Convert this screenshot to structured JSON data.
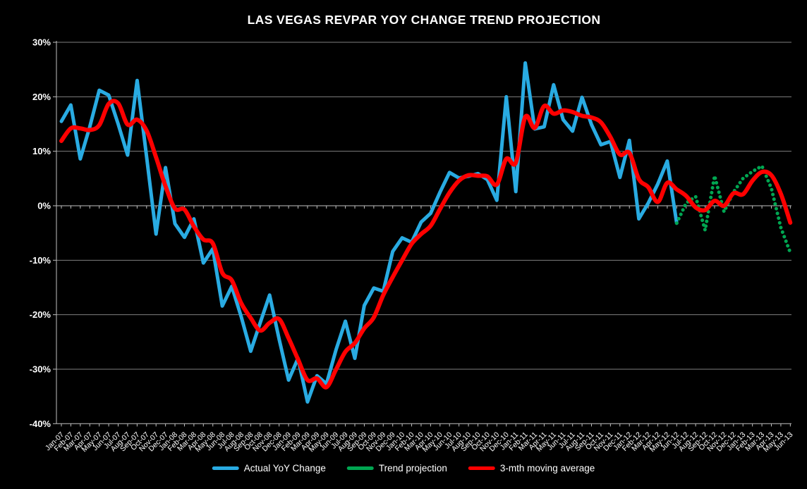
{
  "title": "LAS VEGAS REVPAR YOY CHANGE TREND PROJECTION",
  "axes": {
    "y_tick_labels": [
      "30%",
      "20%",
      "10%",
      "0%",
      "-10%",
      "-20%",
      "-30%",
      "-40%"
    ],
    "y_tick_values": [
      30,
      20,
      10,
      0,
      -10,
      -20,
      -30,
      -40
    ],
    "ylim": [
      -40,
      30
    ],
    "grid": true,
    "legend_position": "bottom"
  },
  "chart_data": {
    "type": "line",
    "title": "LAS VEGAS REVPAR YOY CHANGE TREND PROJECTION",
    "xlabel": "",
    "ylabel": "",
    "ylim": [
      -40,
      30
    ],
    "categories": [
      "Jan-07",
      "Feb-07",
      "Mar-07",
      "Apr-07",
      "May-07",
      "Jun-07",
      "Jul-07",
      "Aug-07",
      "Sep-07",
      "Oct-07",
      "Nov-07",
      "Dec-07",
      "Jan-08",
      "Feb-08",
      "Mar-08",
      "Apr-08",
      "May-08",
      "Jun-08",
      "Jul-08",
      "Aug-08",
      "Sep-08",
      "Oct-08",
      "Nov-08",
      "Dec-08",
      "Jan-09",
      "Feb-09",
      "Mar-09",
      "Apr-09",
      "May-09",
      "Jun-09",
      "Jul-09",
      "Aug-09",
      "Sep-09",
      "Oct-09",
      "Nov-09",
      "Dec-09",
      "Jan-10",
      "Feb-10",
      "Mar-10",
      "Apr-10",
      "May-10",
      "Jun-10",
      "Jul-10",
      "Aug-10",
      "Sep-10",
      "Oct-10",
      "Nov-10",
      "Dec-10",
      "Jan-11",
      "Feb-11",
      "Mar-11",
      "Apr-11",
      "May-11",
      "Jun-11",
      "Jul-11",
      "Aug-11",
      "Sep-11",
      "Oct-11",
      "Nov-11",
      "Dec-11",
      "Jan-12",
      "Feb-12",
      "Mar-12",
      "Apr-12",
      "May-12",
      "Jun-12",
      "Jul-12",
      "Aug-12",
      "Sep-12",
      "Oct-12",
      "Nov-12",
      "Dec-12",
      "Jan-13",
      "Feb-13",
      "Mar-13",
      "Apr-13",
      "May-13",
      "Jun-13"
    ],
    "series": [
      {
        "name": "Actual YoY Change",
        "color": "#29ABE2",
        "style": "solid",
        "start_index": 0,
        "values": [
          15.5,
          18.5,
          8.6,
          14.5,
          21.2,
          20.3,
          15.0,
          9.3,
          23.0,
          9.0,
          -5.2,
          7.0,
          -3.3,
          -5.8,
          -2.4,
          -10.5,
          -7.9,
          -18.4,
          -14.8,
          -20.4,
          -26.7,
          -21.5,
          -16.4,
          -24.5,
          -32.0,
          -28.0,
          -36.0,
          -31.2,
          -32.7,
          -26.5,
          -21.2,
          -28.0,
          -18.3,
          -15.1,
          -15.7,
          -8.4,
          -5.9,
          -6.7,
          -3.0,
          -1.4,
          2.5,
          6.1,
          5.1,
          5.4,
          5.9,
          4.8,
          1.0,
          20.0,
          2.6,
          26.2,
          14.1,
          14.5,
          22.2,
          15.8,
          13.7,
          19.9,
          14.9,
          11.2,
          11.8,
          5.2,
          12.0,
          -2.4,
          0.5,
          4.0,
          8.2,
          -3.2
        ]
      },
      {
        "name": "Trend projection",
        "color": "#00A651",
        "style": "dotted",
        "start_index": 65,
        "values": [
          -3.2,
          0.5,
          1.7,
          -4.5,
          5.5,
          -1.1,
          2.5,
          5.0,
          6.3,
          7.3,
          3.2,
          -4.0,
          -8.6
        ]
      },
      {
        "name": "3-mth moving average",
        "color": "#FF0000",
        "style": "smooth",
        "start_index": 0,
        "values": [
          11.9,
          14.2,
          14.2,
          13.9,
          14.8,
          18.7,
          18.8,
          14.9,
          15.8,
          13.8,
          8.9,
          3.6,
          -0.5,
          -0.7,
          -3.8,
          -6.2,
          -6.9,
          -12.3,
          -13.7,
          -17.9,
          -20.6,
          -22.9,
          -21.5,
          -20.8,
          -24.3,
          -28.2,
          -32.0,
          -31.7,
          -33.3,
          -30.1,
          -26.8,
          -25.2,
          -22.5,
          -20.5,
          -16.4,
          -13.1,
          -10.0,
          -7.0,
          -5.2,
          -3.7,
          -0.6,
          2.4,
          4.6,
          5.6,
          5.5,
          5.4,
          3.9,
          8.6,
          7.9,
          16.3,
          14.3,
          18.3,
          16.9,
          17.5,
          17.2,
          16.5,
          16.2,
          15.3,
          12.6,
          9.4,
          9.7,
          4.9,
          3.4,
          0.7,
          4.2,
          3.0,
          1.8,
          -0.3,
          -0.8,
          0.9,
          0.0,
          2.3,
          2.1,
          4.6,
          6.2,
          5.6,
          2.2,
          -3.1
        ]
      }
    ]
  },
  "colors": {
    "background": "#000000",
    "text": "#FFFFFF",
    "gridline": "#7F7F7F",
    "axis": "#BFBFBF"
  }
}
